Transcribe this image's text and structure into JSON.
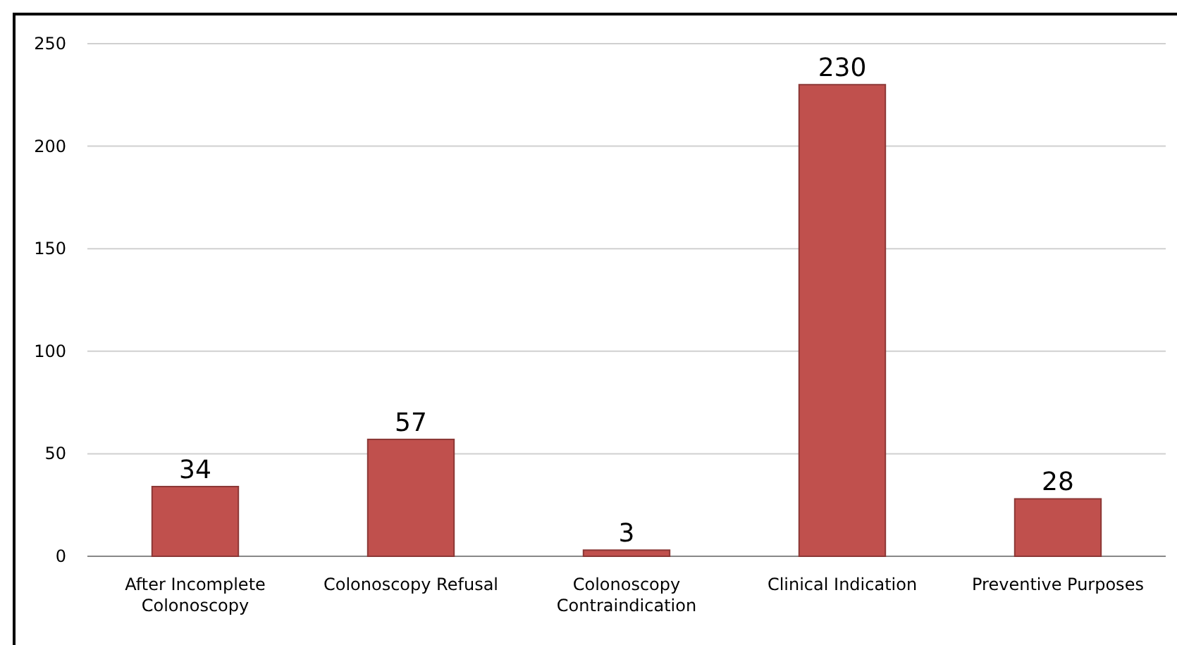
{
  "chart_data": {
    "type": "bar",
    "categories": [
      "After Incomplete Colonoscopy",
      "Colonoscopy Refusal",
      "Colonoscopy Contraindication",
      "Clinical Indication",
      "Preventive Purposes"
    ],
    "values": [
      34,
      57,
      3,
      230,
      28
    ],
    "color": "#c0504d",
    "ylim": [
      0,
      250
    ],
    "yticks": [
      0,
      50,
      100,
      150,
      200,
      250
    ],
    "grid": "y",
    "data_labels": true
  }
}
